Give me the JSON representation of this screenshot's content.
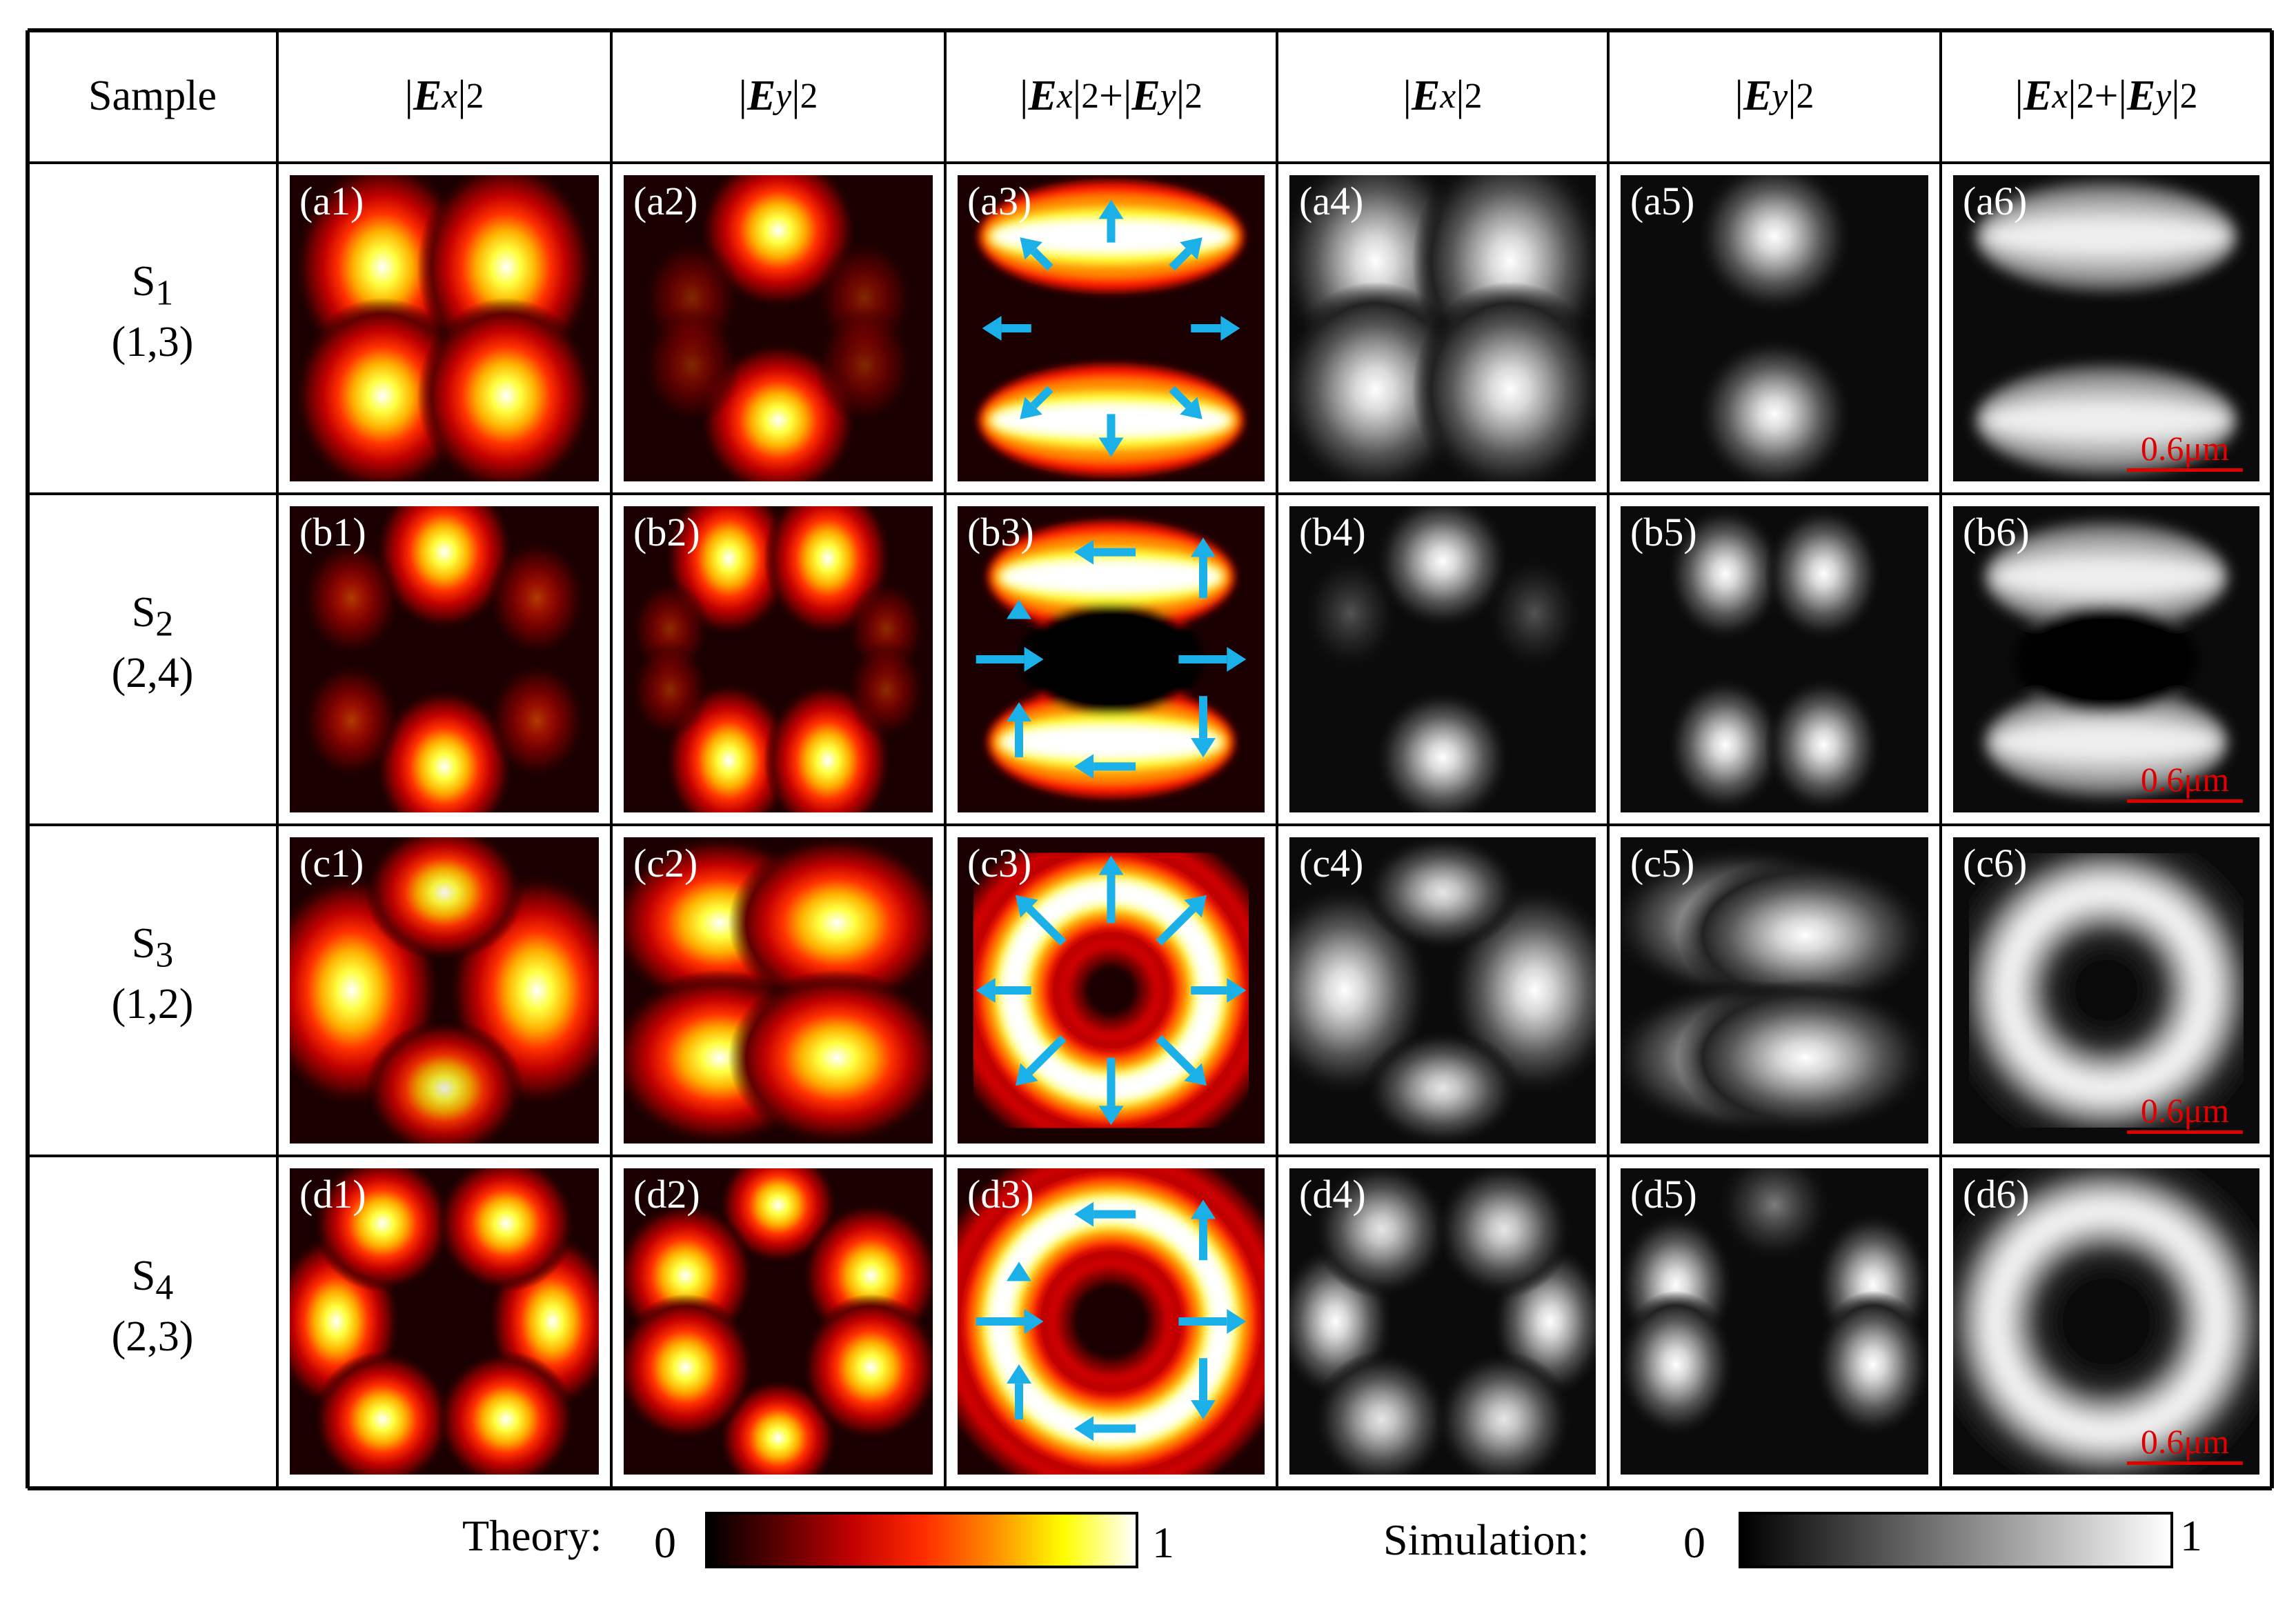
{
  "header": {
    "sample": "Sample",
    "columns": [
      {
        "group": "theory",
        "label": "ex"
      },
      {
        "group": "theory",
        "label": "ey"
      },
      {
        "group": "theory",
        "label": "sum"
      },
      {
        "group": "simulation",
        "label": "ex"
      },
      {
        "group": "simulation",
        "label": "ey"
      },
      {
        "group": "simulation",
        "label": "sum"
      }
    ],
    "ex_label": {
      "pre": "|",
      "sym": "E",
      "sub": "x",
      "post": "|",
      "sup": "2"
    },
    "ey_label": {
      "pre": "|",
      "sym": "E",
      "sub": "y",
      "post": "|",
      "sup": "2"
    },
    "sum_label": {
      "a_pre": "|",
      "a_sym": "E",
      "a_sub": "x",
      "a_post": "|",
      "a_sup": "2",
      "plus": "+ ",
      "b_pre": "|",
      "b_sym": "E",
      "b_sub": "y",
      "b_post": "|",
      "b_sup": "2"
    }
  },
  "rows": [
    {
      "sample_main": "S",
      "sample_sub": "1",
      "mode": "(1,3)",
      "letter": "a",
      "panels": [
        "(a1)",
        "(a2)",
        "(a3)",
        "(a4)",
        "(a5)",
        "(a6)"
      ]
    },
    {
      "sample_main": "S",
      "sample_sub": "2",
      "mode": "(2,4)",
      "letter": "b",
      "panels": [
        "(b1)",
        "(b2)",
        "(b3)",
        "(b4)",
        "(b5)",
        "(b6)"
      ]
    },
    {
      "sample_main": "S",
      "sample_sub": "3",
      "mode": "(1,2)",
      "letter": "c",
      "panels": [
        "(c1)",
        "(c2)",
        "(c3)",
        "(c4)",
        "(c5)",
        "(c6)"
      ]
    },
    {
      "sample_main": "S",
      "sample_sub": "4",
      "mode": "(2,3)",
      "letter": "d",
      "panels": [
        "(d1)",
        "(d2)",
        "(d3)",
        "(d4)",
        "(d5)",
        "(d6)"
      ]
    }
  ],
  "scale_bar": "0.6μm",
  "legend": {
    "theory_label": "Theory:",
    "theory_min": "0",
    "theory_max": "1",
    "simulation_label": "Simulation:",
    "simulation_min": "0",
    "simulation_max": "1"
  },
  "colors": {
    "theory_colormap": [
      "#000000",
      "#5a0000",
      "#c00000",
      "#ff2a00",
      "#ff8c00",
      "#ffff00",
      "#ffffff"
    ],
    "simulation_colormap": [
      "#000000",
      "#ffffff"
    ],
    "arrow": "#1cb0e8",
    "scale_bar": "#e00000"
  }
}
